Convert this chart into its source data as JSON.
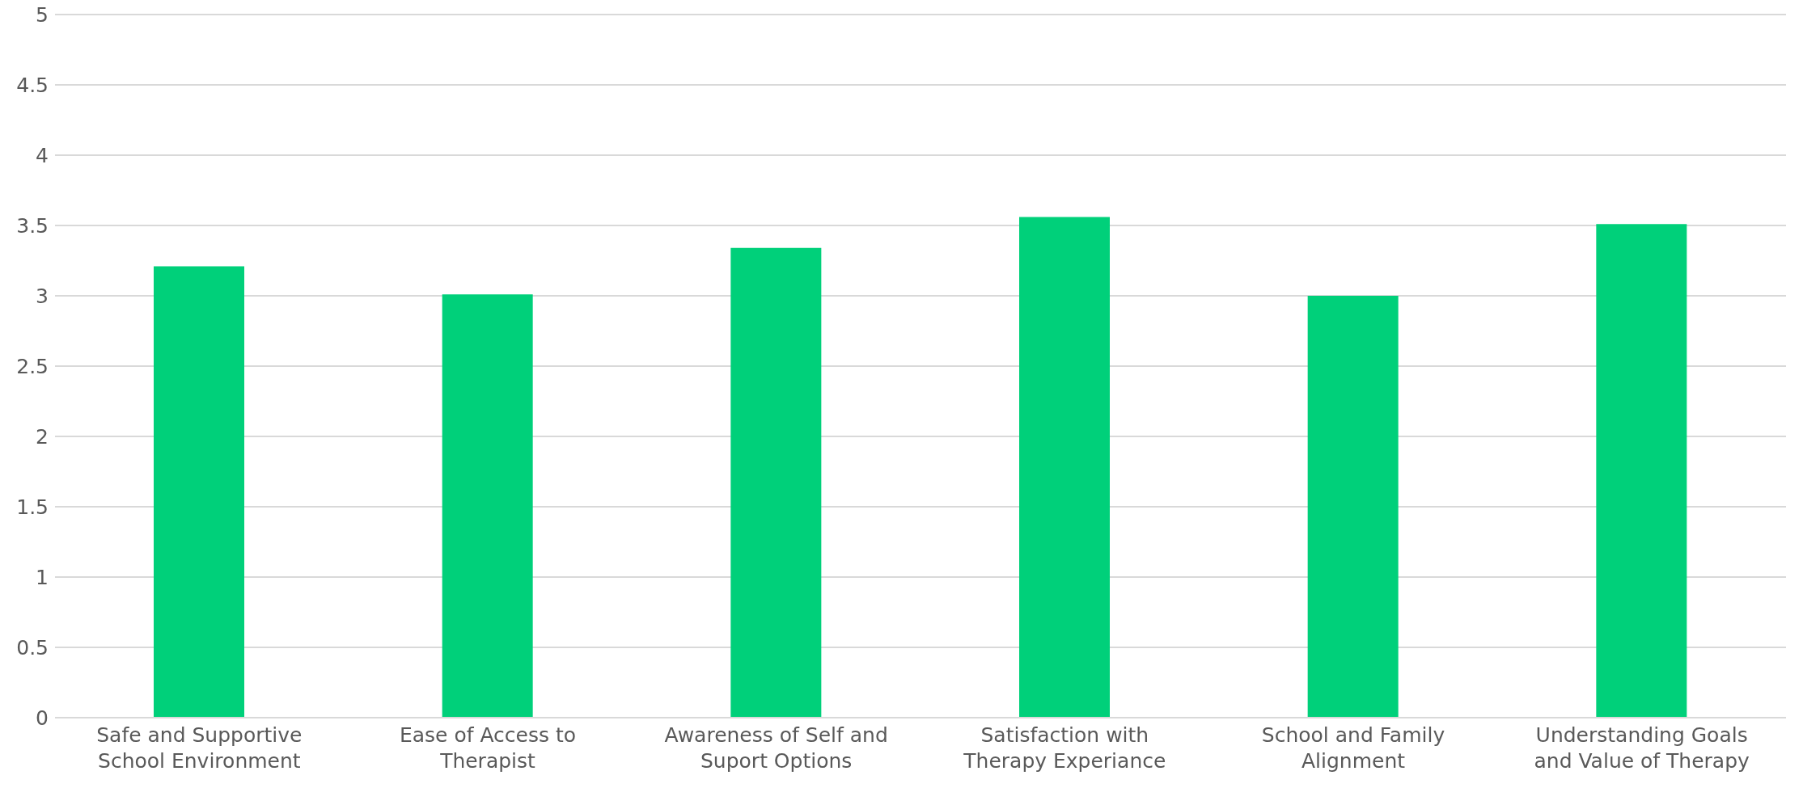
{
  "chart_data": {
    "type": "bar",
    "categories": [
      "Safe and Supportive School Environment",
      "Ease of Access to Therapist",
      "Awareness of Self and Suport Options",
      "Satisfaction with Therapy Experiance",
      "School and Family Alignment",
      "Understanding Goals and Value of Therapy"
    ],
    "values": [
      3.21,
      3.01,
      3.34,
      3.56,
      3.0,
      3.51
    ],
    "color": "#00d07a",
    "ylim": [
      0,
      5
    ],
    "yticks": [
      0,
      0.5,
      1,
      1.5,
      2,
      2.5,
      3,
      3.5,
      4,
      4.5,
      5
    ],
    "grid": "y",
    "legend": false
  }
}
